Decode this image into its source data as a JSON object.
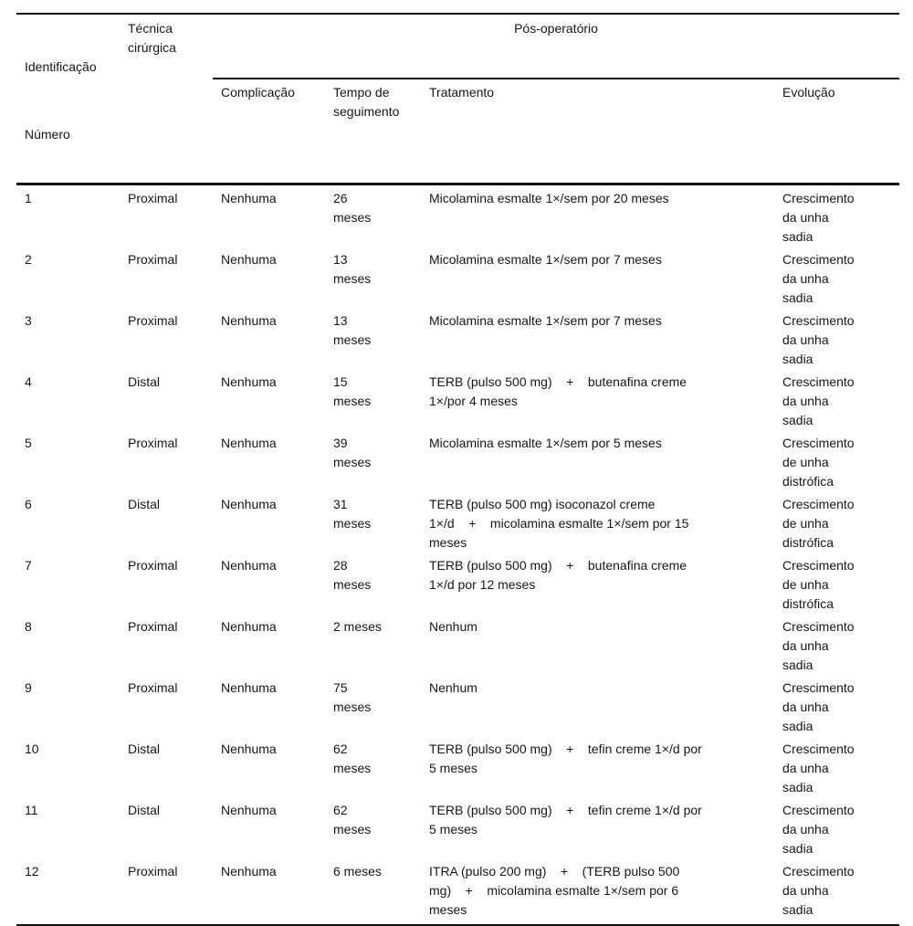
{
  "table": {
    "header": {
      "col1_line1": "Identificação",
      "col1_line2": "Número",
      "col2": "Técnica cirúrgica",
      "span": "Pós-operatório",
      "sub": [
        "Complicação",
        "Tempo de\nseguimento",
        "Tratamento",
        "Evolução"
      ]
    },
    "rows": [
      {
        "id": "1",
        "tecnica": "Proximal",
        "complicacao": "Nenhuma",
        "tempo": "26\nmeses",
        "tratamento": "Micolamina esmalte 1×/sem por 20 meses",
        "evolucao": "Crescimento\nda unha\nsadia"
      },
      {
        "id": "2",
        "tecnica": "Proximal",
        "complicacao": "Nenhuma",
        "tempo": "13\nmeses",
        "tratamento": "Micolamina esmalte 1×/sem por 7 meses",
        "evolucao": "Crescimento\nda unha\nsadia"
      },
      {
        "id": "3",
        "tecnica": "Proximal",
        "complicacao": "Nenhuma",
        "tempo": "13\nmeses",
        "tratamento": "Micolamina esmalte 1×/sem por 7 meses",
        "evolucao": "Crescimento\nda unha\nsadia"
      },
      {
        "id": "4",
        "tecnica": "Distal",
        "complicacao": "Nenhuma",
        "tempo": "15\nmeses",
        "tratamento": "TERB (pulso 500 mg)    +    butenafina creme\n1×/por 4 meses",
        "evolucao": "Crescimento\nda unha\nsadia"
      },
      {
        "id": "5",
        "tecnica": "Proximal",
        "complicacao": "Nenhuma",
        "tempo": "39\nmeses",
        "tratamento": "Micolamina esmalte 1×/sem por 5 meses",
        "evolucao": "Crescimento\nde unha\ndistrófica"
      },
      {
        "id": "6",
        "tecnica": "Distal",
        "complicacao": "Nenhuma",
        "tempo": "31\nmeses",
        "tratamento": "TERB (pulso 500 mg) isoconazol creme\n1×/d    +    micolamina esmalte 1×/sem por 15\nmeses",
        "evolucao": "Crescimento\nde unha\ndistrófica"
      },
      {
        "id": "7",
        "tecnica": "Proximal",
        "complicacao": "Nenhuma",
        "tempo": "28\nmeses",
        "tratamento": "TERB (pulso 500 mg)    +    butenafina creme\n1×/d por 12 meses",
        "evolucao": "Crescimento\nde unha\ndistrófica"
      },
      {
        "id": "8",
        "tecnica": "Proximal",
        "complicacao": "Nenhuma",
        "tempo": "2 meses",
        "tratamento": "Nenhum",
        "evolucao": "Crescimento\nda unha\nsadia"
      },
      {
        "id": "9",
        "tecnica": "Proximal",
        "complicacao": "Nenhuma",
        "tempo": "75\nmeses",
        "tratamento": "Nenhum",
        "evolucao": "Crescimento\nda unha\nsadia"
      },
      {
        "id": "10",
        "tecnica": "Distal",
        "complicacao": "Nenhuma",
        "tempo": "62\nmeses",
        "tratamento": "TERB (pulso 500 mg)    +    tefin creme 1×/d por\n5 meses",
        "evolucao": "Crescimento\nda unha\nsadia"
      },
      {
        "id": "11",
        "tecnica": "Distal",
        "complicacao": "Nenhuma",
        "tempo": "62\nmeses",
        "tratamento": "TERB (pulso 500 mg)    +    tefin creme 1×/d por\n5 meses",
        "evolucao": "Crescimento\nda unha\nsadia"
      },
      {
        "id": "12",
        "tecnica": "Proximal",
        "complicacao": "Nenhuma",
        "tempo": "6 meses",
        "tratamento": "ITRA (pulso 200 mg)    +    (TERB pulso 500\nmg)    +    micolamina esmalte 1×/sem por 6\nmeses",
        "evolucao": "Crescimento\nda unha\nsadia"
      }
    ]
  }
}
